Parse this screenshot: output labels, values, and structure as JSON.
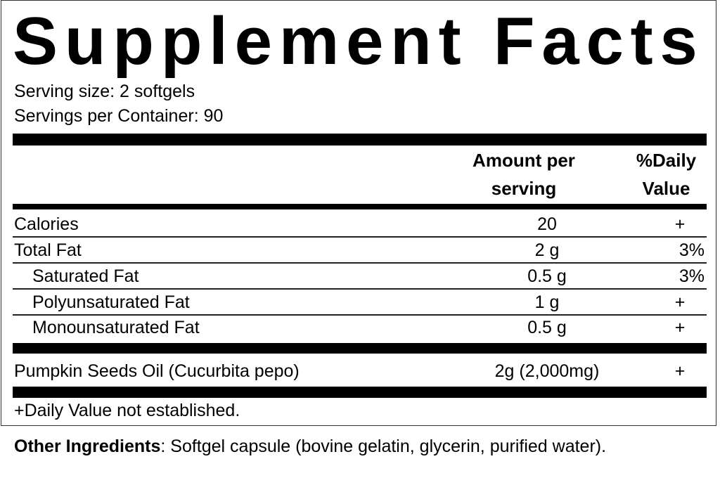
{
  "title": "Supplement Facts",
  "serving_size": "Serving size: 2 softgels",
  "servings_per_container": "Servings per Container: 90",
  "headers": {
    "amount_line1": "Amount per",
    "amount_line2": "serving",
    "dv_line1": "%Daily",
    "dv_line2": "Value"
  },
  "rows": [
    {
      "label": "Calories",
      "amount": "20",
      "dv": "+"
    },
    {
      "label": "Total Fat",
      "amount": "2 g",
      "dv": "3%"
    },
    {
      "label": "Saturated Fat",
      "amount": "0.5 g",
      "dv": "3%"
    },
    {
      "label": "Polyunsaturated Fat",
      "amount": "1 g",
      "dv": "+"
    },
    {
      "label": "Monounsaturated Fat",
      "amount": "0.5 g",
      "dv": "+"
    }
  ],
  "ingredient": {
    "label": "Pumpkin Seeds Oil (Cucurbita pepo)",
    "amount": "2g (2,000mg)",
    "dv": "+"
  },
  "footnote": "+Daily Value not established.",
  "other_ingredients": {
    "label": "Other Ingredients",
    "text": ": Softgel capsule (bovine gelatin, glycerin, purified water)."
  }
}
